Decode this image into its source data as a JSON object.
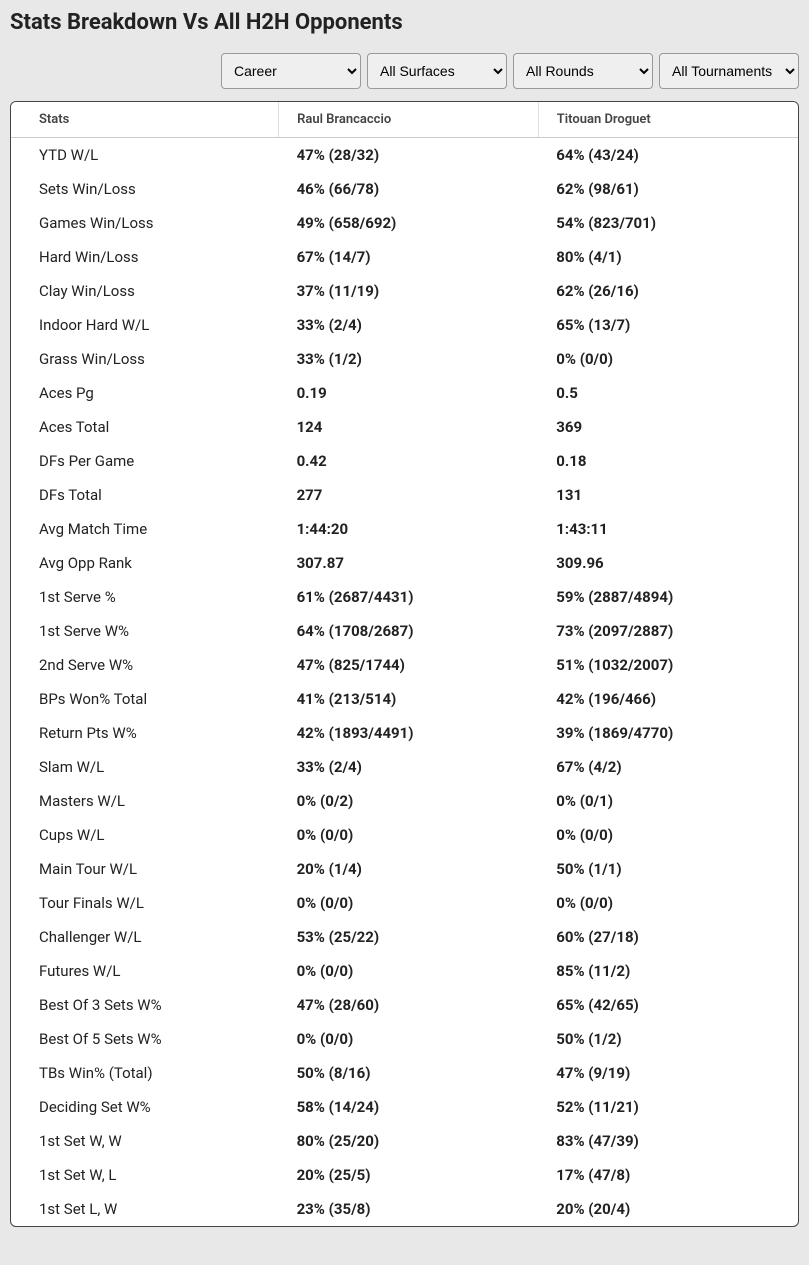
{
  "title": "Stats Breakdown Vs All H2H Opponents",
  "filters": {
    "period": "Career",
    "surface": "All Surfaces",
    "round": "All Rounds",
    "tournament": "All Tournaments"
  },
  "table": {
    "columns": [
      "Stats",
      "Raul Brancaccio",
      "Titouan Droguet"
    ],
    "rows": [
      [
        "YTD W/L",
        "47% (28/32)",
        "64% (43/24)"
      ],
      [
        "Sets Win/Loss",
        "46% (66/78)",
        "62% (98/61)"
      ],
      [
        "Games Win/Loss",
        "49% (658/692)",
        "54% (823/701)"
      ],
      [
        "Hard Win/Loss",
        "67% (14/7)",
        "80% (4/1)"
      ],
      [
        "Clay Win/Loss",
        "37% (11/19)",
        "62% (26/16)"
      ],
      [
        "Indoor Hard W/L",
        "33% (2/4)",
        "65% (13/7)"
      ],
      [
        "Grass Win/Loss",
        "33% (1/2)",
        "0% (0/0)"
      ],
      [
        "Aces Pg",
        "0.19",
        "0.5"
      ],
      [
        "Aces Total",
        "124",
        "369"
      ],
      [
        "DFs Per Game",
        "0.42",
        "0.18"
      ],
      [
        "DFs Total",
        "277",
        "131"
      ],
      [
        "Avg Match Time",
        "1:44:20",
        "1:43:11"
      ],
      [
        "Avg Opp Rank",
        "307.87",
        "309.96"
      ],
      [
        "1st Serve %",
        "61% (2687/4431)",
        "59% (2887/4894)"
      ],
      [
        "1st Serve W%",
        "64% (1708/2687)",
        "73% (2097/2887)"
      ],
      [
        "2nd Serve W%",
        "47% (825/1744)",
        "51% (1032/2007)"
      ],
      [
        "BPs Won% Total",
        "41% (213/514)",
        "42% (196/466)"
      ],
      [
        "Return Pts W%",
        "42% (1893/4491)",
        "39% (1869/4770)"
      ],
      [
        "Slam W/L",
        "33% (2/4)",
        "67% (4/2)"
      ],
      [
        "Masters W/L",
        "0% (0/2)",
        "0% (0/1)"
      ],
      [
        "Cups W/L",
        "0% (0/0)",
        "0% (0/0)"
      ],
      [
        "Main Tour W/L",
        "20% (1/4)",
        "50% (1/1)"
      ],
      [
        "Tour Finals W/L",
        "0% (0/0)",
        "0% (0/0)"
      ],
      [
        "Challenger W/L",
        "53% (25/22)",
        "60% (27/18)"
      ],
      [
        "Futures W/L",
        "0% (0/0)",
        "85% (11/2)"
      ],
      [
        "Best Of 3 Sets W%",
        "47% (28/60)",
        "65% (42/65)"
      ],
      [
        "Best Of 5 Sets W%",
        "0% (0/0)",
        "50% (1/2)"
      ],
      [
        "TBs Win% (Total)",
        "50% (8/16)",
        "47% (9/19)"
      ],
      [
        "Deciding Set W%",
        "58% (14/24)",
        "52% (11/21)"
      ],
      [
        "1st Set W, W",
        "80% (25/20)",
        "83% (47/39)"
      ],
      [
        "1st Set W, L",
        "20% (25/5)",
        "17% (47/8)"
      ],
      [
        "1st Set L, W",
        "23% (35/8)",
        "20% (20/4)"
      ]
    ]
  }
}
